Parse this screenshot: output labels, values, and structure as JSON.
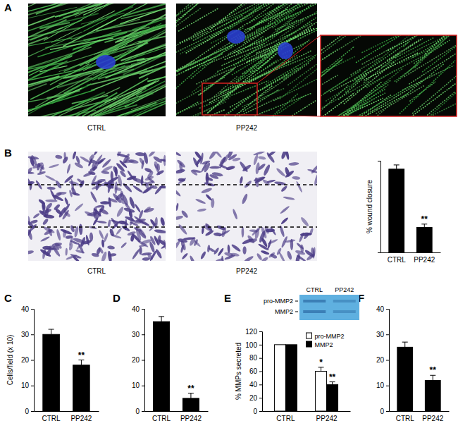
{
  "figure": {
    "panel_labels": [
      "A",
      "B",
      "C",
      "D",
      "E",
      "F"
    ],
    "image_captions_a": [
      "CTRL",
      "PP242"
    ],
    "image_captions_b": [
      "CTRL",
      "PP242"
    ],
    "gel": {
      "lanes": [
        "CTRL",
        "PP242"
      ],
      "bands": [
        "pro-MMP2",
        "MMP2"
      ]
    }
  },
  "chart_data": [
    {
      "type": "bar",
      "ylabel": "% wound closure",
      "categories": [
        "CTRL",
        "PP242"
      ],
      "values": [
        100,
        30
      ],
      "errors": [
        5,
        4
      ],
      "color": "#000000",
      "ylim": [
        0,
        110
      ],
      "tick_labels": "x",
      "annotations": [
        {
          "category": "PP242",
          "text": "**"
        }
      ]
    },
    {
      "type": "bar",
      "ylabel": "Cells/field (x 10)",
      "categories": [
        "CTRL",
        "PP242"
      ],
      "values": [
        30,
        18
      ],
      "errors": [
        2,
        2
      ],
      "color": "#000000",
      "ylim": [
        0,
        40
      ],
      "yticks": [
        0,
        10,
        20,
        30,
        40
      ],
      "annotations": [
        {
          "category": "PP242",
          "text": "**"
        }
      ]
    },
    {
      "type": "bar",
      "categories": [
        "CTRL",
        "PP242"
      ],
      "values": [
        35,
        5
      ],
      "errors": [
        2,
        2
      ],
      "color": "#000000",
      "ylim": [
        0,
        40
      ],
      "yticks": [
        0,
        10,
        20,
        30,
        40
      ],
      "annotations": [
        {
          "category": "PP242",
          "text": "**"
        }
      ]
    },
    {
      "type": "bar",
      "ylabel": "% MMPs secreted",
      "categories": [
        "CTRL",
        "PP242"
      ],
      "series": [
        {
          "name": "pro-MMP2",
          "color": "#ffffff",
          "values": [
            100,
            60
          ],
          "errors": [
            null,
            6
          ]
        },
        {
          "name": "MMP2",
          "color": "#000000",
          "values": [
            100,
            40
          ],
          "errors": [
            null,
            4
          ]
        }
      ],
      "ylim": [
        0,
        120
      ],
      "yticks": [
        0,
        20,
        40,
        60,
        80,
        100,
        120
      ],
      "legend": "upper right",
      "annotations": [
        {
          "category": "PP242",
          "series": "pro-MMP2",
          "text": "*"
        },
        {
          "category": "PP242",
          "series": "MMP2",
          "text": "**"
        }
      ]
    },
    {
      "type": "bar",
      "categories": [
        "CTRL",
        "PP242"
      ],
      "values": [
        25,
        12
      ],
      "errors": [
        2,
        2
      ],
      "color": "#000000",
      "ylim": [
        0,
        40
      ],
      "yticks": [
        0,
        10,
        20,
        30,
        40
      ],
      "annotations": [
        {
          "category": "PP242",
          "text": "**"
        }
      ]
    }
  ]
}
